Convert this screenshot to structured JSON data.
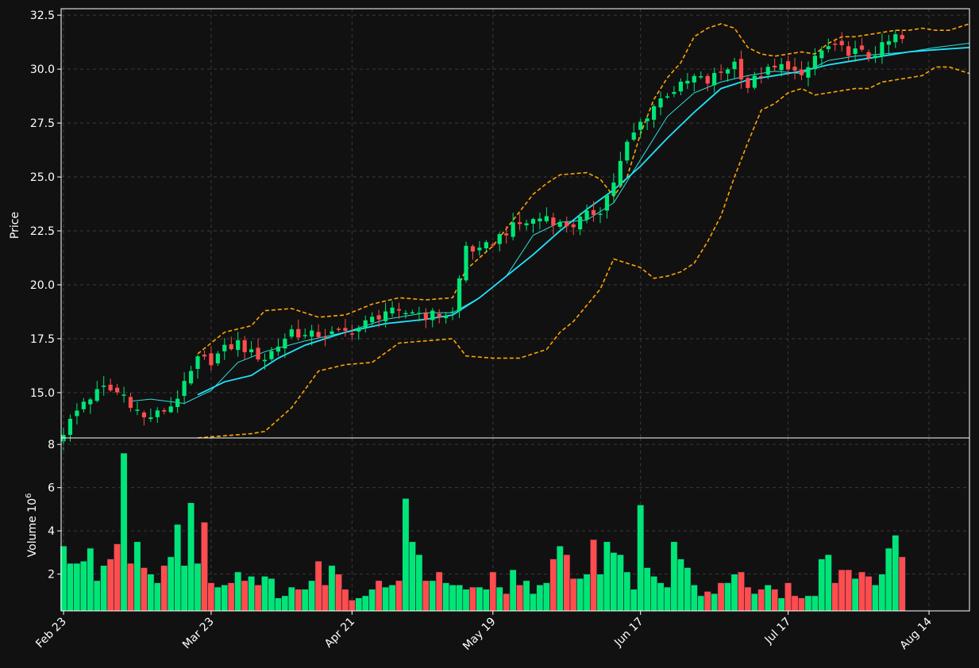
{
  "chart_data": [
    {
      "type": "candlestick",
      "ylabel": "Price",
      "ylim": [
        12.9,
        32.8
      ],
      "yticks": [
        "15.0",
        "17.5",
        "20.0",
        "22.5",
        "25.0",
        "27.5",
        "30.0",
        "32.5"
      ],
      "xticks": [
        "Feb 23",
        "Mar 23",
        "Apr 21",
        "May 19",
        "Jun 17",
        "Jul 17",
        "Aug 14"
      ],
      "grid": true,
      "colors": {
        "up": "#00e676",
        "down": "#ff4d4d",
        "ma_fast": "#2de0e0",
        "ma_slow": "#1ee6ff",
        "bands": "#ffa500"
      },
      "anchors": [
        [
          0,
          13.2
        ],
        [
          3,
          14.6
        ],
        [
          6,
          15.2
        ],
        [
          9,
          14.9
        ],
        [
          12,
          13.8
        ],
        [
          14,
          14.0
        ],
        [
          16,
          14.4
        ],
        [
          18,
          15.3
        ],
        [
          20,
          16.5
        ],
        [
          22,
          16.5
        ],
        [
          24,
          17.0
        ],
        [
          26,
          17.3
        ],
        [
          28,
          16.8
        ],
        [
          30,
          16.6
        ],
        [
          32,
          17.2
        ],
        [
          34,
          17.9
        ],
        [
          36,
          17.6
        ],
        [
          38,
          17.7
        ],
        [
          40,
          17.7
        ],
        [
          42,
          17.8
        ],
        [
          44,
          18.0
        ],
        [
          46,
          18.4
        ],
        [
          48,
          18.8
        ],
        [
          50,
          18.6
        ],
        [
          52,
          18.8
        ],
        [
          54,
          18.6
        ],
        [
          56,
          18.6
        ],
        [
          58,
          18.7
        ],
        [
          60,
          21.8
        ],
        [
          62,
          21.5
        ],
        [
          64,
          22.0
        ],
        [
          66,
          22.5
        ],
        [
          68,
          22.8
        ],
        [
          70,
          23.0
        ],
        [
          72,
          23.2
        ],
        [
          74,
          22.8
        ],
        [
          76,
          22.8
        ],
        [
          78,
          23.2
        ],
        [
          80,
          23.5
        ],
        [
          82,
          24.8
        ],
        [
          84,
          26.5
        ],
        [
          86,
          27.5
        ],
        [
          88,
          28.3
        ],
        [
          90,
          28.9
        ],
        [
          92,
          29.2
        ],
        [
          94,
          29.6
        ],
        [
          96,
          29.4
        ],
        [
          98,
          29.9
        ],
        [
          100,
          30.3
        ],
        [
          102,
          29.2
        ],
        [
          104,
          29.8
        ],
        [
          106,
          30.0
        ],
        [
          108,
          30.2
        ],
        [
          110,
          29.5
        ],
        [
          112,
          30.6
        ],
        [
          114,
          31.0
        ],
        [
          116,
          30.9
        ],
        [
          118,
          30.8
        ],
        [
          120,
          30.6
        ],
        [
          122,
          31.0
        ],
        [
          124,
          31.5
        ],
        [
          126,
          31.2
        ],
        [
          128,
          31.4
        ],
        [
          130,
          31.2
        ],
        [
          132,
          31.0
        ],
        [
          134,
          31.2
        ],
        [
          135,
          32.2
        ]
      ],
      "ma_fast": [
        [
          10,
          14.6
        ],
        [
          13,
          14.7
        ],
        [
          18,
          14.5
        ],
        [
          22,
          15.1
        ],
        [
          26,
          16.4
        ],
        [
          30,
          16.9
        ],
        [
          36,
          17.4
        ],
        [
          42,
          17.8
        ],
        [
          48,
          18.4
        ],
        [
          54,
          18.7
        ],
        [
          58,
          18.7
        ],
        [
          62,
          19.4
        ],
        [
          66,
          20.4
        ],
        [
          70,
          22.3
        ],
        [
          74,
          22.9
        ],
        [
          78,
          23.0
        ],
        [
          82,
          23.8
        ],
        [
          86,
          25.8
        ],
        [
          90,
          27.8
        ],
        [
          94,
          28.9
        ],
        [
          98,
          29.4
        ],
        [
          102,
          29.7
        ],
        [
          106,
          29.9
        ],
        [
          110,
          29.8
        ],
        [
          114,
          30.4
        ],
        [
          118,
          30.6
        ],
        [
          122,
          30.7
        ],
        [
          126,
          30.8
        ],
        [
          130,
          31.0
        ],
        [
          135,
          31.2
        ]
      ],
      "ma_slow": [
        [
          20,
          14.9
        ],
        [
          24,
          15.5
        ],
        [
          28,
          15.8
        ],
        [
          32,
          16.6
        ],
        [
          36,
          17.2
        ],
        [
          42,
          17.8
        ],
        [
          48,
          18.2
        ],
        [
          54,
          18.4
        ],
        [
          58,
          18.6
        ],
        [
          62,
          19.4
        ],
        [
          66,
          20.4
        ],
        [
          70,
          21.4
        ],
        [
          74,
          22.5
        ],
        [
          78,
          23.5
        ],
        [
          82,
          24.4
        ],
        [
          86,
          25.5
        ],
        [
          90,
          26.8
        ],
        [
          94,
          28.0
        ],
        [
          98,
          29.1
        ],
        [
          102,
          29.5
        ],
        [
          106,
          29.7
        ],
        [
          110,
          29.9
        ],
        [
          114,
          30.2
        ],
        [
          118,
          30.4
        ],
        [
          122,
          30.6
        ],
        [
          126,
          30.8
        ],
        [
          130,
          30.9
        ],
        [
          135,
          31.0
        ]
      ],
      "band_upper": [
        [
          20,
          16.8
        ],
        [
          24,
          17.8
        ],
        [
          28,
          18.1
        ],
        [
          30,
          18.8
        ],
        [
          34,
          18.9
        ],
        [
          38,
          18.5
        ],
        [
          42,
          18.6
        ],
        [
          46,
          19.1
        ],
        [
          50,
          19.4
        ],
        [
          54,
          19.3
        ],
        [
          58,
          19.4
        ],
        [
          60,
          20.7
        ],
        [
          64,
          21.8
        ],
        [
          66,
          22.6
        ],
        [
          70,
          24.2
        ],
        [
          72,
          24.7
        ],
        [
          74,
          25.1
        ],
        [
          78,
          25.2
        ],
        [
          80,
          24.9
        ],
        [
          82,
          24.1
        ],
        [
          84,
          25.0
        ],
        [
          86,
          27.0
        ],
        [
          88,
          28.6
        ],
        [
          90,
          29.6
        ],
        [
          92,
          30.3
        ],
        [
          94,
          31.5
        ],
        [
          96,
          31.9
        ],
        [
          98,
          32.1
        ],
        [
          100,
          31.9
        ],
        [
          102,
          31.0
        ],
        [
          104,
          30.7
        ],
        [
          106,
          30.6
        ],
        [
          108,
          30.7
        ],
        [
          110,
          30.8
        ],
        [
          112,
          30.7
        ],
        [
          114,
          31.2
        ],
        [
          116,
          31.5
        ],
        [
          118,
          31.5
        ],
        [
          120,
          31.6
        ],
        [
          122,
          31.7
        ],
        [
          124,
          31.8
        ],
        [
          126,
          31.8
        ],
        [
          128,
          31.9
        ],
        [
          130,
          31.8
        ],
        [
          132,
          31.8
        ],
        [
          135,
          32.1
        ]
      ],
      "band_lower": [
        [
          20,
          12.9
        ],
        [
          24,
          13.0
        ],
        [
          28,
          13.1
        ],
        [
          30,
          13.2
        ],
        [
          34,
          14.3
        ],
        [
          38,
          16.0
        ],
        [
          42,
          16.3
        ],
        [
          46,
          16.4
        ],
        [
          50,
          17.3
        ],
        [
          54,
          17.4
        ],
        [
          58,
          17.5
        ],
        [
          60,
          16.7
        ],
        [
          64,
          16.6
        ],
        [
          68,
          16.6
        ],
        [
          72,
          17.0
        ],
        [
          74,
          17.8
        ],
        [
          76,
          18.3
        ],
        [
          80,
          19.8
        ],
        [
          82,
          21.2
        ],
        [
          84,
          21.0
        ],
        [
          86,
          20.8
        ],
        [
          88,
          20.3
        ],
        [
          90,
          20.4
        ],
        [
          92,
          20.6
        ],
        [
          94,
          21.0
        ],
        [
          96,
          22.0
        ],
        [
          98,
          23.2
        ],
        [
          100,
          25.0
        ],
        [
          102,
          26.6
        ],
        [
          104,
          28.1
        ],
        [
          106,
          28.4
        ],
        [
          108,
          28.9
        ],
        [
          110,
          29.1
        ],
        [
          112,
          28.8
        ],
        [
          114,
          28.9
        ],
        [
          116,
          29.0
        ],
        [
          118,
          29.1
        ],
        [
          120,
          29.1
        ],
        [
          122,
          29.4
        ],
        [
          124,
          29.5
        ],
        [
          126,
          29.6
        ],
        [
          128,
          29.7
        ],
        [
          130,
          30.1
        ],
        [
          132,
          30.1
        ],
        [
          135,
          29.8
        ]
      ]
    },
    {
      "type": "bar",
      "ylabel": "Volume  10",
      "ylabel_exponent": "6",
      "ylim": [
        0.3,
        8.3
      ],
      "yticks": [
        "2",
        "4",
        "6",
        "8"
      ],
      "grid": true,
      "values": [
        3.3,
        2.5,
        2.5,
        2.6,
        3.2,
        1.7,
        2.4,
        2.7,
        3.4,
        7.6,
        2.5,
        3.5,
        2.3,
        2.0,
        1.6,
        2.4,
        2.8,
        4.3,
        2.4,
        5.3,
        2.5,
        4.4,
        1.6,
        1.4,
        1.5,
        1.6,
        2.1,
        1.7,
        1.9,
        1.5,
        1.9,
        1.8,
        0.9,
        1.0,
        1.4,
        1.3,
        1.3,
        1.7,
        2.6,
        1.5,
        2.4,
        2.0,
        1.3,
        0.8,
        0.9,
        1.0,
        1.3,
        1.7,
        1.4,
        1.5,
        1.7,
        5.5,
        3.5,
        2.9,
        1.7,
        1.7,
        2.1,
        1.6,
        1.5,
        1.5,
        1.3,
        1.4,
        1.4,
        1.3,
        2.1,
        1.4,
        1.1,
        2.2,
        1.5,
        1.7,
        1.1,
        1.5,
        1.6,
        2.7,
        3.3,
        2.9,
        1.8,
        1.8,
        2.0,
        3.6,
        2.0,
        3.5,
        3.0,
        2.9,
        2.1,
        1.3,
        5.2,
        2.3,
        1.9,
        1.6,
        1.4,
        3.5,
        2.7,
        2.3,
        1.5,
        1.0,
        1.2,
        1.1,
        1.6,
        1.6,
        2.0,
        2.1,
        1.4,
        1.1,
        1.3,
        1.5,
        1.3,
        0.9,
        1.6,
        1.0,
        0.9,
        1.0,
        1.0,
        2.7,
        2.9,
        1.6,
        2.2,
        2.2,
        1.8,
        2.1,
        1.9,
        1.5,
        2.0,
        3.2,
        3.8,
        2.8
      ]
    }
  ]
}
